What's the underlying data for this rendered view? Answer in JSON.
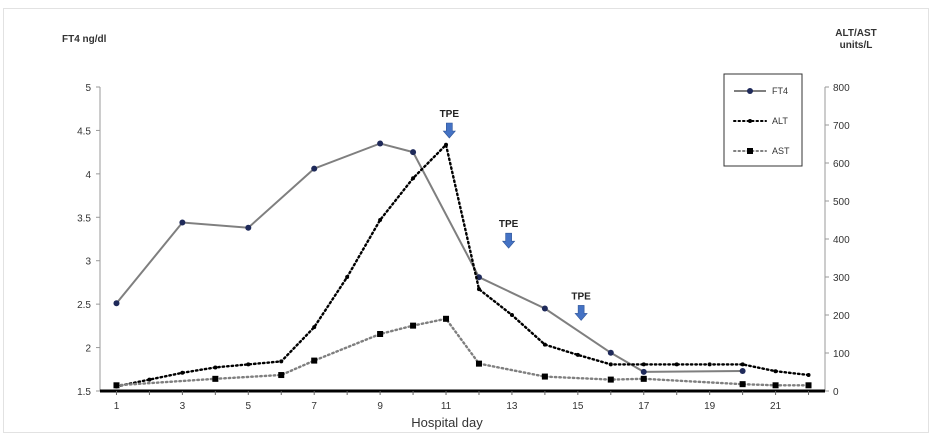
{
  "chart_data": {
    "type": "line",
    "left_axis_label": "FT4 ng/dl",
    "right_axis_label_line1": "ALT/AST",
    "right_axis_label_line2": "units/L",
    "xlabel": "Hospital day",
    "x_ticks": [
      "1",
      "3",
      "5",
      "7",
      "9",
      "11",
      "13",
      "15",
      "17",
      "19",
      "21"
    ],
    "y_left_ticks": [
      "5",
      "4.5",
      "4",
      "3.5",
      "3",
      "2.5",
      "2",
      "1.5"
    ],
    "y_right_ticks": [
      "800",
      "700",
      "600",
      "500",
      "400",
      "300",
      "200",
      "100",
      "0"
    ],
    "xlim": [
      0.5,
      22.5
    ],
    "ylim_left": [
      1.5,
      5
    ],
    "ylim_right": [
      0,
      800
    ],
    "legend_position": "top-right",
    "series": [
      {
        "name": "FT4",
        "axis": "left",
        "style": "solid",
        "color": "#7f7f7f",
        "marker": "circle",
        "marker_color": "#1f2a5a",
        "x": [
          1,
          3,
          5,
          7,
          9,
          10,
          12,
          14,
          16,
          17,
          20
        ],
        "y": [
          2.51,
          3.44,
          3.38,
          4.06,
          4.35,
          4.25,
          2.81,
          2.45,
          1.94,
          1.72,
          1.73
        ]
      },
      {
        "name": "ALT",
        "axis": "right",
        "style": "dotted",
        "color": "#000000",
        "marker": "dot",
        "x": [
          1,
          2,
          3,
          4,
          5,
          6,
          7,
          8,
          9,
          10,
          11,
          12,
          13,
          14,
          15,
          16,
          17,
          18,
          19,
          20,
          21,
          22
        ],
        "y": [
          12,
          30,
          48,
          62,
          70,
          78,
          168,
          300,
          450,
          560,
          648,
          268,
          200,
          122,
          95,
          70,
          70,
          70,
          70,
          70,
          52,
          42
        ]
      },
      {
        "name": "AST",
        "axis": "right",
        "style": "dotted",
        "color": "#7f7f7f",
        "marker": "square",
        "marker_color": "#000000",
        "x": [
          1,
          4,
          6,
          7,
          9,
          10,
          11,
          12,
          14,
          16,
          17,
          20,
          21,
          22
        ],
        "y": [
          15,
          32,
          42,
          80,
          150,
          172,
          190,
          72,
          38,
          30,
          32,
          18,
          15,
          15
        ]
      }
    ],
    "annotations": [
      {
        "text": "TPE",
        "x": 11.1,
        "y_right": 700
      },
      {
        "text": "TPE",
        "x": 12.9,
        "y_right": 410
      },
      {
        "text": "TPE",
        "x": 15.1,
        "y_right": 220
      }
    ],
    "arrow_color": "#4472c4"
  }
}
